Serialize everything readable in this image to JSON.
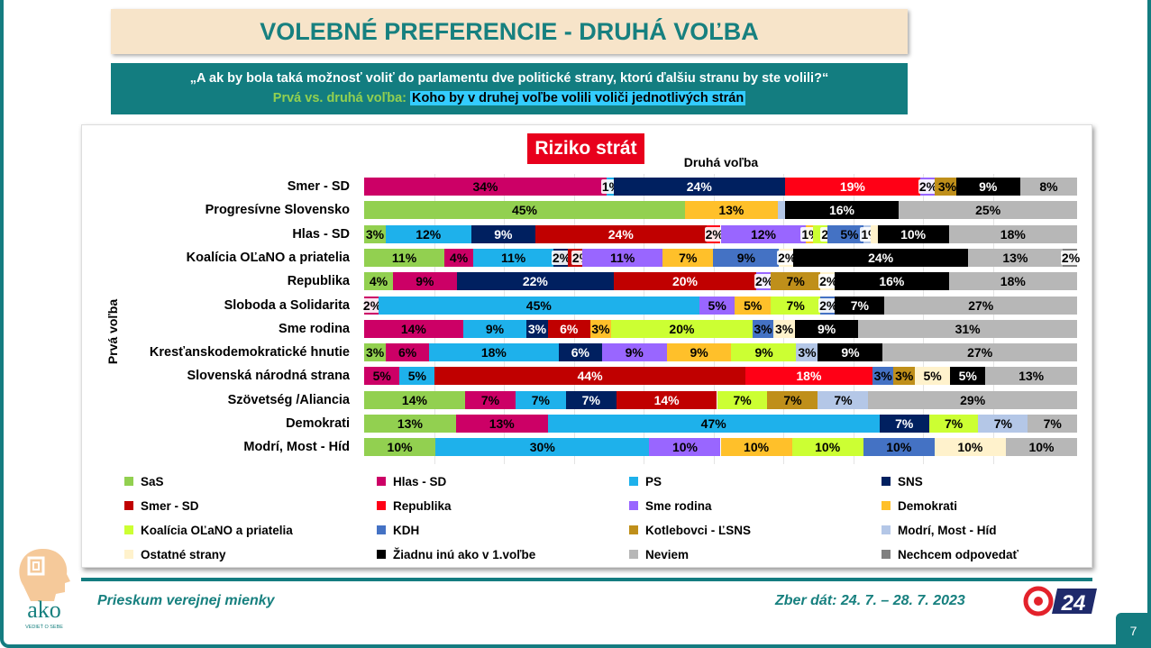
{
  "header": {
    "title": "VOLEBNÉ PREFERENCIE - DRUHÁ VOĽBA",
    "question": "„A ak by bola taká možnosť voliť do parlamentu dve politické strany, ktorú ďalšiu stranu by ste volili?“",
    "subtitle_prefix": "Prvá vs. druhá voľba:",
    "subtitle_highlight": "Koho by v druhej voľbe volili voliči jednotlivých strán"
  },
  "chart_data": {
    "type": "bar",
    "orientation": "horizontal",
    "stacked": true,
    "title": "Riziko strát",
    "xlabel": "Druhá voľba",
    "ylabel": "Prvá voľba",
    "xlim": [
      0,
      100
    ],
    "unit": "%",
    "legend": "bottom",
    "legend_entries": [
      "SaS",
      "Hlas - SD",
      "PS",
      "SNS",
      "Smer - SD",
      "Republika",
      "Sme rodina",
      "Demokrati",
      "Koalícia OĽaNO a priatelia",
      "KDH",
      "Kotlebovci - ĽSNS",
      "Modrí, Most - Híd",
      "Ostatné strany",
      "Žiadnu inú ako v 1.voľbe",
      "Neviem",
      "Nechcem odpovedať"
    ],
    "colors": [
      "#92D050",
      "#CC0066",
      "#1EB1EB",
      "#002060",
      "#C00000",
      "#FF0016",
      "#9966FF",
      "#FFC02A",
      "#CCFF33",
      "#4472C4",
      "#BF8F1A",
      "#B4C7E7",
      "#FFF2CC",
      "#000000",
      "#B7B7B7",
      "#808080"
    ],
    "categories": [
      "Smer - SD",
      "Progresívne Slovensko",
      "Hlas - SD",
      "Koalícia OĽaNO a priatelia",
      "Republika",
      "Sloboda a Solidarita",
      "Sme rodina",
      "Kresťanskodemokratické hnutie",
      "Slovenská národná strana",
      "Szövetség  /Aliancia",
      "Demokrati",
      "Modrí, Most - Híd"
    ],
    "values": [
      [
        0,
        34,
        1,
        24,
        0,
        19,
        2,
        0,
        0,
        0,
        3,
        0,
        0,
        9,
        8,
        0
      ],
      [
        45,
        0,
        0,
        0,
        0,
        0,
        0,
        13,
        0,
        0,
        0,
        1,
        0,
        16,
        25,
        0
      ],
      [
        3,
        0,
        12,
        9,
        24,
        2,
        12,
        1,
        2,
        5,
        0,
        1,
        1,
        10,
        18,
        0
      ],
      [
        11,
        4,
        11,
        2,
        2,
        0,
        11,
        7,
        0,
        9,
        0,
        0,
        2,
        24,
        13,
        2
      ],
      [
        4,
        9,
        0,
        22,
        20,
        0,
        2,
        0,
        0,
        0,
        7,
        0,
        2,
        16,
        18,
        0
      ],
      [
        0,
        2,
        45,
        0,
        0,
        0,
        5,
        5,
        7,
        2,
        0,
        0,
        0,
        7,
        27,
        0
      ],
      [
        0,
        14,
        9,
        3,
        6,
        0,
        0,
        3,
        20,
        3,
        0,
        0,
        3,
        9,
        31,
        0
      ],
      [
        3,
        6,
        18,
        6,
        0,
        0,
        9,
        9,
        9,
        0,
        0,
        3,
        0,
        9,
        27,
        0
      ],
      [
        0,
        5,
        5,
        0,
        44,
        18,
        0,
        0,
        0,
        3,
        3,
        0,
        5,
        5,
        13,
        0
      ],
      [
        14,
        7,
        7,
        7,
        14,
        0,
        0,
        0,
        7,
        0,
        7,
        7,
        0,
        0,
        29,
        0
      ],
      [
        13,
        13,
        47,
        7,
        0,
        0,
        0,
        0,
        7,
        0,
        0,
        7,
        0,
        0,
        7,
        0
      ],
      [
        10,
        0,
        30,
        0,
        0,
        0,
        10,
        10,
        10,
        10,
        0,
        0,
        10,
        0,
        10,
        0
      ]
    ],
    "hidden_labels": [
      [
        1,
        11
      ]
    ]
  },
  "footer": {
    "survey": "Prieskum verejnej mienky",
    "date": "Zber dát: 24. 7. – 28. 7. 2023",
    "page": "7",
    "logo_text": "ako",
    "logo_tagline": "VEDIEŤ O SEBE",
    "tv_logo": "24"
  }
}
